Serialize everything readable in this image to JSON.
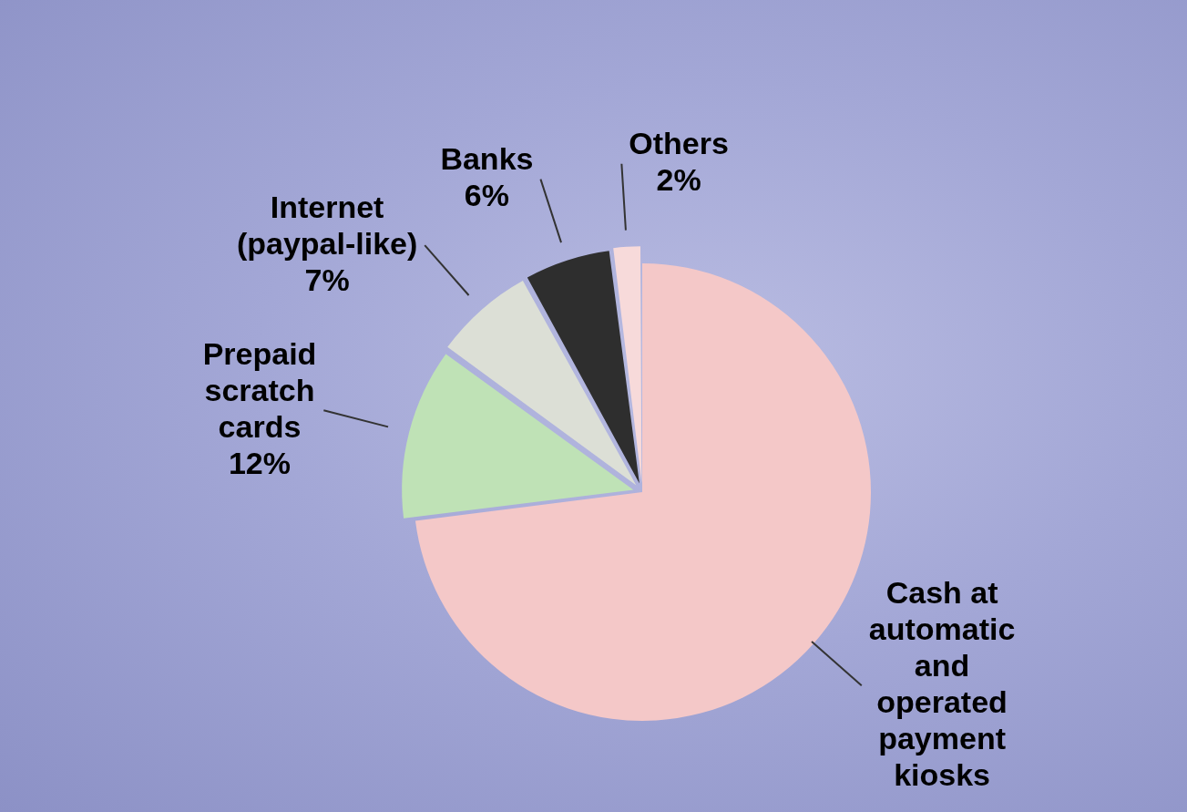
{
  "chart_data": {
    "type": "pie",
    "categories": [
      "Cash at automatic and operated payment kiosks",
      "Prepaid scratch cards",
      "Internet (paypal-like)",
      "Banks",
      "Others"
    ],
    "values": [
      73,
      12,
      7,
      6,
      2
    ],
    "value_labels": [
      null,
      "12%",
      "7%",
      "6%",
      "2%"
    ],
    "colors": [
      "#f4c8c8",
      "#bfe2b6",
      "#dcdfd6",
      "#2e2e2e",
      "#f7dada"
    ],
    "data_labels": true
  }
}
